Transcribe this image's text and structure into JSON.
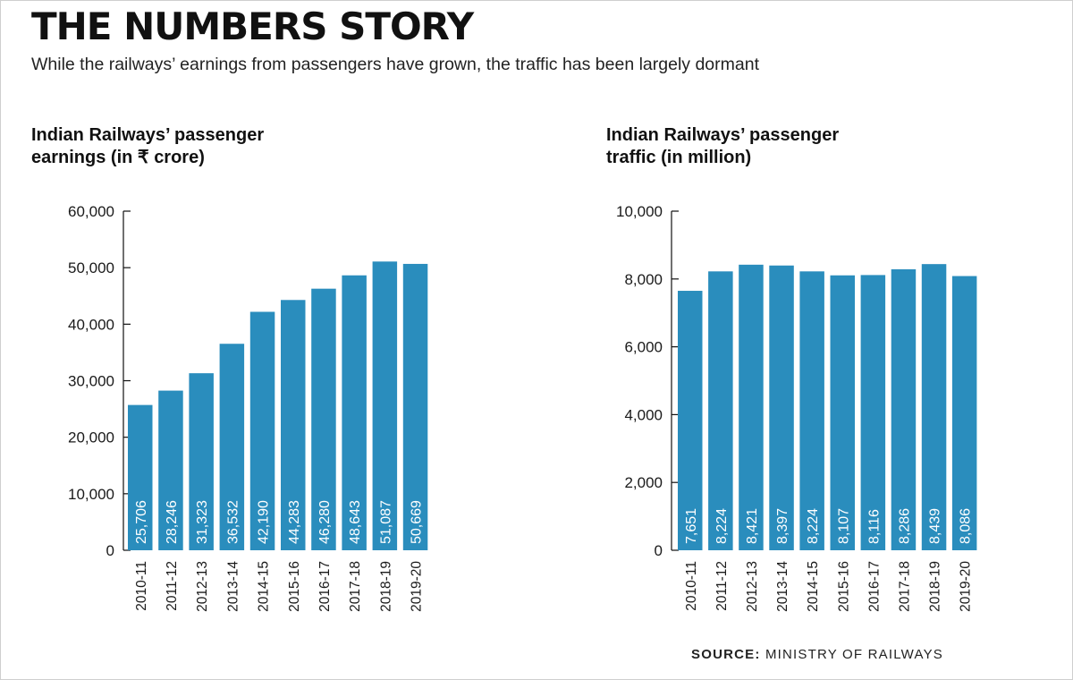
{
  "header": {
    "title": "THE NUMBERS STORY",
    "subtitle": "While the railways’ earnings from passengers have grown, the traffic has been largely dormant"
  },
  "source": {
    "label": "SOURCE:",
    "text": "MINISTRY OF RAILWAYS"
  },
  "colors": {
    "bar": "#2a8dbd",
    "text": "#1a1a1a",
    "value_label": "#ffffff"
  },
  "chart_data": [
    {
      "type": "bar",
      "title_line1": "Indian Railways’ passenger",
      "title_line2": "earnings (in ₹ crore)",
      "categories": [
        "2010-11",
        "2011-12",
        "2012-13",
        "2013-14",
        "2014-15",
        "2015-16",
        "2016-17",
        "2017-18",
        "2018-19",
        "2019-20"
      ],
      "values": [
        25706,
        28246,
        31323,
        36532,
        42190,
        44283,
        46280,
        48643,
        51087,
        50669
      ],
      "value_labels": [
        "25,706",
        "28,246",
        "31,323",
        "36,532",
        "42,190",
        "44,283",
        "46,280",
        "48,643",
        "51,087",
        "50,669"
      ],
      "ylim": [
        0,
        60000
      ],
      "yticks": [
        0,
        10000,
        20000,
        30000,
        40000,
        50000,
        60000
      ],
      "ytick_labels": [
        "0",
        "10,000",
        "20,000",
        "30,000",
        "40,000",
        "50,000",
        "60,000"
      ],
      "grid": false
    },
    {
      "type": "bar",
      "title_line1": "Indian Railways’ passenger",
      "title_line2": "traffic (in million)",
      "categories": [
        "2010-11",
        "2011-12",
        "2012-13",
        "2013-14",
        "2014-15",
        "2015-16",
        "2016-17",
        "2017-18",
        "2018-19",
        "2019-20"
      ],
      "values": [
        7651,
        8224,
        8421,
        8397,
        8224,
        8107,
        8116,
        8286,
        8439,
        8086
      ],
      "value_labels": [
        "7,651",
        "8,224",
        "8,421",
        "8,397",
        "8,224",
        "8,107",
        "8,116",
        "8,286",
        "8,439",
        "8,086"
      ],
      "ylim": [
        0,
        10000
      ],
      "yticks": [
        0,
        2000,
        4000,
        6000,
        8000,
        10000
      ],
      "ytick_labels": [
        "0",
        "2,000",
        "4,000",
        "6,000",
        "8,000",
        "10,000"
      ],
      "grid": false
    }
  ]
}
